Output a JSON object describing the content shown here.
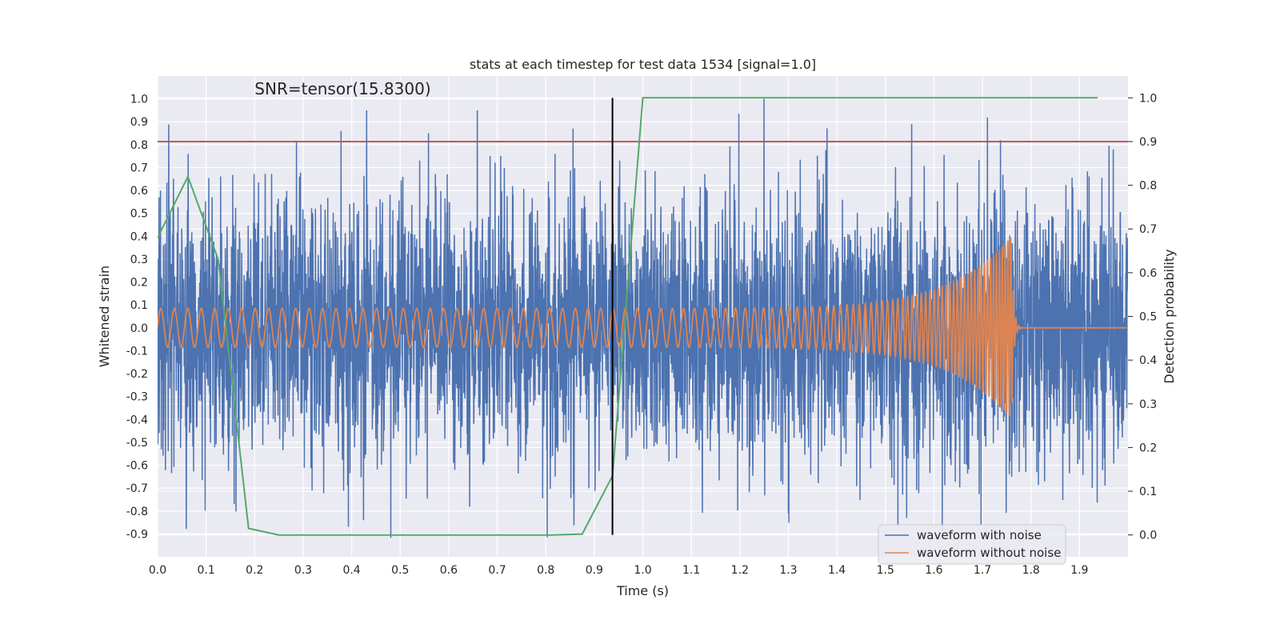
{
  "chart_data": {
    "type": "line",
    "title": "stats at each timestep for test data 1534 [signal=1.0]",
    "annotation": "SNR=tensor(15.8300)",
    "xlabel": "Time (s)",
    "ylabel": "Whitened strain",
    "ylabel_right": "Detection probability",
    "xlim": [
      0.0,
      2.0
    ],
    "ylim": [
      -1.0,
      1.1
    ],
    "ylim_right": [
      -0.05,
      1.05
    ],
    "x_ticks": [
      "0.0",
      "0.1",
      "0.2",
      "0.3",
      "0.4",
      "0.5",
      "0.6",
      "0.7",
      "0.8",
      "0.9",
      "1.0",
      "1.1",
      "1.2",
      "1.3",
      "1.4",
      "1.5",
      "1.6",
      "1.7",
      "1.8",
      "1.9"
    ],
    "y_ticks": [
      "-0.9",
      "-0.8",
      "-0.7",
      "-0.6",
      "-0.5",
      "-0.4",
      "-0.3",
      "-0.2",
      "-0.1",
      "0.0",
      "0.1",
      "0.2",
      "0.3",
      "0.4",
      "0.5",
      "0.6",
      "0.7",
      "0.8",
      "0.9",
      "1.0"
    ],
    "y_ticks_right": [
      "0.0",
      "0.1",
      "0.2",
      "0.3",
      "0.4",
      "0.5",
      "0.6",
      "0.7",
      "0.8",
      "0.9",
      "1.0"
    ],
    "grid": true,
    "legend_position": "lower-right",
    "series": [
      {
        "name": "waveform with noise",
        "color": "#4c72b0",
        "axis": "left",
        "description_type": "noise",
        "amplitude_std": 0.28,
        "peak_points": [
          {
            "x": 0.063,
            "y": 0.76
          },
          {
            "x": 0.286,
            "y": 0.81
          },
          {
            "x": 0.378,
            "y": 0.86
          },
          {
            "x": 0.558,
            "y": 0.85
          },
          {
            "x": 0.856,
            "y": 0.87
          },
          {
            "x": 1.25,
            "y": 1.0
          },
          {
            "x": 1.554,
            "y": 0.89
          },
          {
            "x": 1.737,
            "y": 0.82
          },
          {
            "x": 1.526,
            "y": -0.86
          },
          {
            "x": 1.3,
            "y": -0.81
          }
        ]
      },
      {
        "name": "waveform without noise",
        "color": "#dd8452",
        "axis": "left",
        "description_type": "chirp",
        "start_amplitude": 0.085,
        "peak_amplitude": 0.4,
        "merger_time": 1.76,
        "start_frequency_hz": 36,
        "end_frequency_hz": 180
      },
      {
        "name": "",
        "color": "#55a868",
        "axis": "right",
        "x": [
          0.0,
          0.0625,
          0.125,
          0.1875,
          0.25,
          0.3125,
          0.375,
          0.4375,
          0.5,
          0.5625,
          0.625,
          0.6875,
          0.75,
          0.8125,
          0.875,
          0.9375,
          1.0,
          1.0625,
          1.125,
          1.1875,
          1.25,
          1.3125,
          1.375,
          1.4375,
          1.5,
          1.5625,
          1.625,
          1.6875,
          1.75,
          1.8125,
          1.875,
          1.9375
        ],
        "y": [
          0.68,
          0.82,
          0.63,
          0.015,
          0.0,
          0.0,
          0.0,
          0.0,
          0.0,
          0.0,
          0.0,
          0.0,
          0.0,
          0.0,
          0.002,
          0.135,
          1.0,
          1.0,
          1.0,
          1.0,
          1.0,
          1.0,
          1.0,
          1.0,
          1.0,
          1.0,
          1.0,
          1.0,
          1.0,
          1.0,
          1.0,
          1.0
        ]
      }
    ],
    "hlines": [
      {
        "axis": "right",
        "y": 0.9,
        "color": "#c44e52"
      }
    ],
    "vlines": [
      {
        "x": 0.9375,
        "y_range_right": [
          0.0,
          1.0
        ],
        "color": "#000000"
      }
    ]
  }
}
